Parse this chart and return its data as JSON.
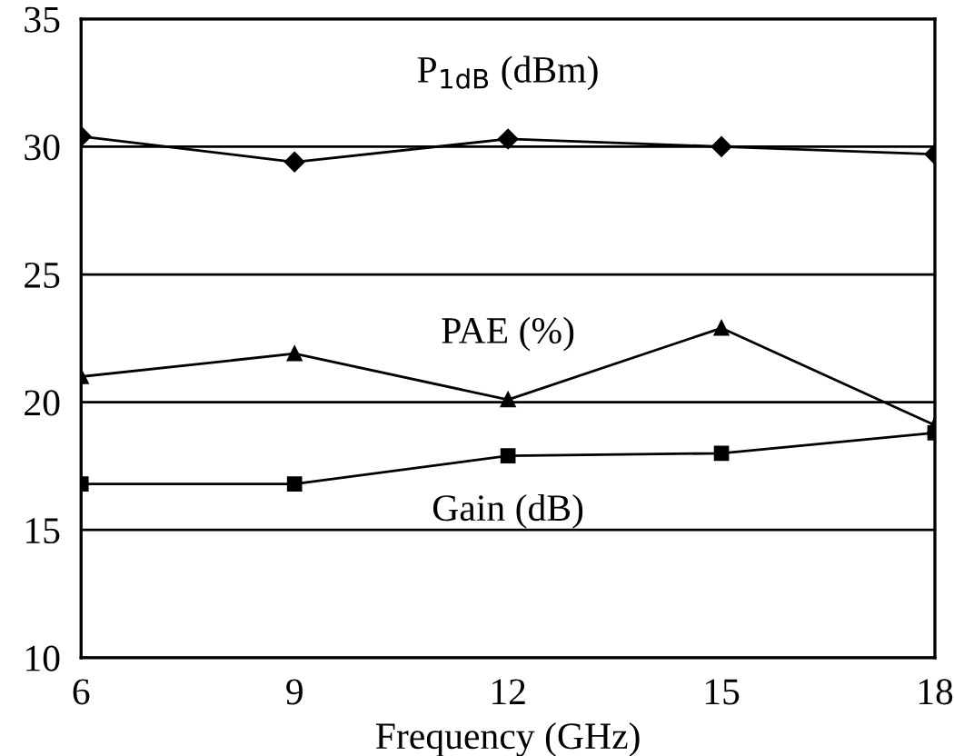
{
  "chart_data": {
    "type": "line",
    "xlabel": "Frequency (GHz)",
    "x": [
      6,
      9,
      12,
      15,
      18
    ],
    "series": [
      {
        "name": "P$_{1dB}$ (dBm)",
        "color": "#000000",
        "marker": "diamond",
        "values": [
          30.4,
          29.4,
          30.3,
          30.0,
          29.7
        ]
      },
      {
        "name": "PAE (%)",
        "color": "#000000",
        "marker": "triangle",
        "values": [
          21.0,
          21.9,
          20.1,
          22.9,
          19.1
        ]
      },
      {
        "name": "Gain (dB)",
        "color": "#000000",
        "marker": "square",
        "values": [
          16.8,
          16.8,
          17.9,
          18.0,
          18.8
        ]
      }
    ],
    "xlim": [
      6,
      18
    ],
    "ylim": [
      10,
      35
    ],
    "xticks": [
      6,
      9,
      12,
      15,
      18
    ],
    "yticks": [
      10,
      15,
      20,
      25,
      30,
      35
    ],
    "grid": "y",
    "line_style": "solid"
  }
}
